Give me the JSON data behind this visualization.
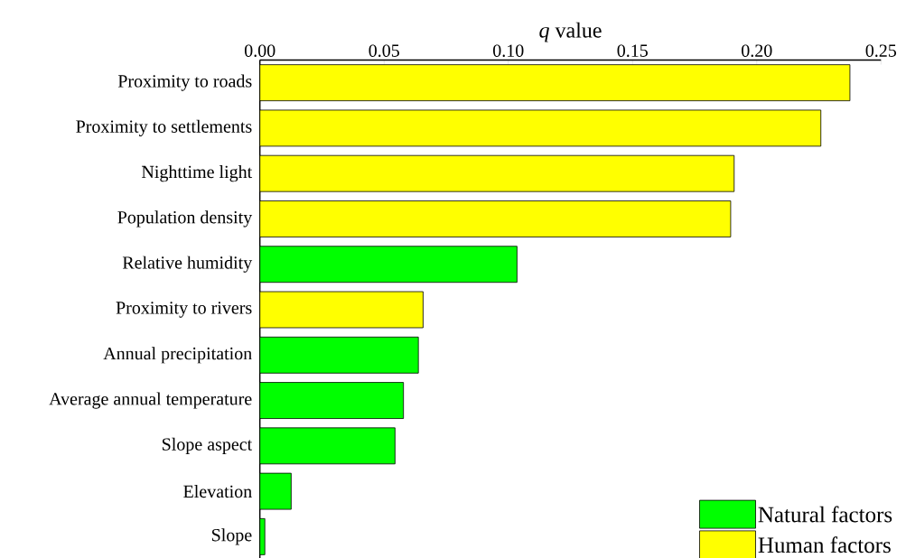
{
  "chart_data": {
    "type": "bar",
    "orientation": "horizontal",
    "xlabel": "*q* value",
    "categories": [
      "Proximity to roads",
      "Proximity to settlements",
      "Nighttime light",
      "Population density",
      "Relative humidity",
      "Proximity to rivers",
      "Annual precipitation",
      "Average annual temperature",
      "Slope aspect",
      "Elevation",
      "Slope"
    ],
    "series": [
      {
        "name": "Natural factors",
        "color": "#00ff00",
        "values": [
          null,
          null,
          null,
          null,
          0.1035,
          null,
          0.0638,
          0.0578,
          0.0544,
          0.0126,
          0.002
        ]
      },
      {
        "name": "Human factors",
        "color": "#ffff00",
        "values": [
          0.2375,
          0.2258,
          0.1909,
          0.1895,
          null,
          0.0657,
          null,
          null,
          null,
          null,
          null
        ]
      }
    ],
    "xlim": [
      0,
      0.25
    ],
    "xticks": [
      {
        "value": 0,
        "label": "0.00"
      },
      0.05,
      {
        "value": 0.1,
        "label": "0.10"
      },
      0.15,
      {
        "value": 0.2,
        "label": "0.20"
      },
      0.25
    ],
    "legend": "bottom right"
  }
}
